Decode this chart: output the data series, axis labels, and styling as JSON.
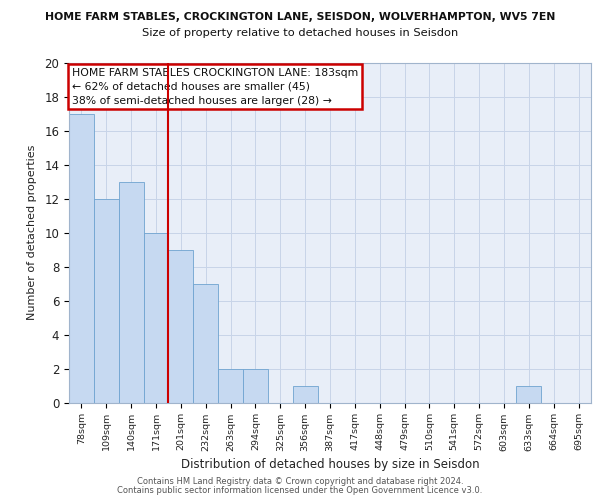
{
  "title1": "HOME FARM STABLES, CROCKINGTON LANE, SEISDON, WOLVERHAMPTON, WV5 7EN",
  "title2": "Size of property relative to detached houses in Seisdon",
  "xlabel": "Distribution of detached houses by size in Seisdon",
  "ylabel": "Number of detached properties",
  "categories": [
    "78sqm",
    "109sqm",
    "140sqm",
    "171sqm",
    "201sqm",
    "232sqm",
    "263sqm",
    "294sqm",
    "325sqm",
    "356sqm",
    "387sqm",
    "417sqm",
    "448sqm",
    "479sqm",
    "510sqm",
    "541sqm",
    "572sqm",
    "603sqm",
    "633sqm",
    "664sqm",
    "695sqm"
  ],
  "values": [
    17,
    12,
    13,
    10,
    9,
    7,
    2,
    2,
    0,
    1,
    0,
    0,
    0,
    0,
    0,
    0,
    0,
    0,
    1,
    0,
    0
  ],
  "bar_color": "#c6d9f1",
  "bar_edge_color": "#6fa3d0",
  "red_line_x": 3.5,
  "annotation_line1": "HOME FARM STABLES CROCKINGTON LANE: 183sqm",
  "annotation_line2": "← 62% of detached houses are smaller (45)",
  "annotation_line3": "38% of semi-detached houses are larger (28) →",
  "annotation_box_color": "#ffffff",
  "annotation_box_edge_color": "#cc0000",
  "ylim": [
    0,
    20
  ],
  "yticks": [
    0,
    2,
    4,
    6,
    8,
    10,
    12,
    14,
    16,
    18,
    20
  ],
  "grid_color": "#c8d4e8",
  "bg_color": "#e8eef8",
  "footer1": "Contains HM Land Registry data © Crown copyright and database right 2024.",
  "footer2": "Contains public sector information licensed under the Open Government Licence v3.0."
}
